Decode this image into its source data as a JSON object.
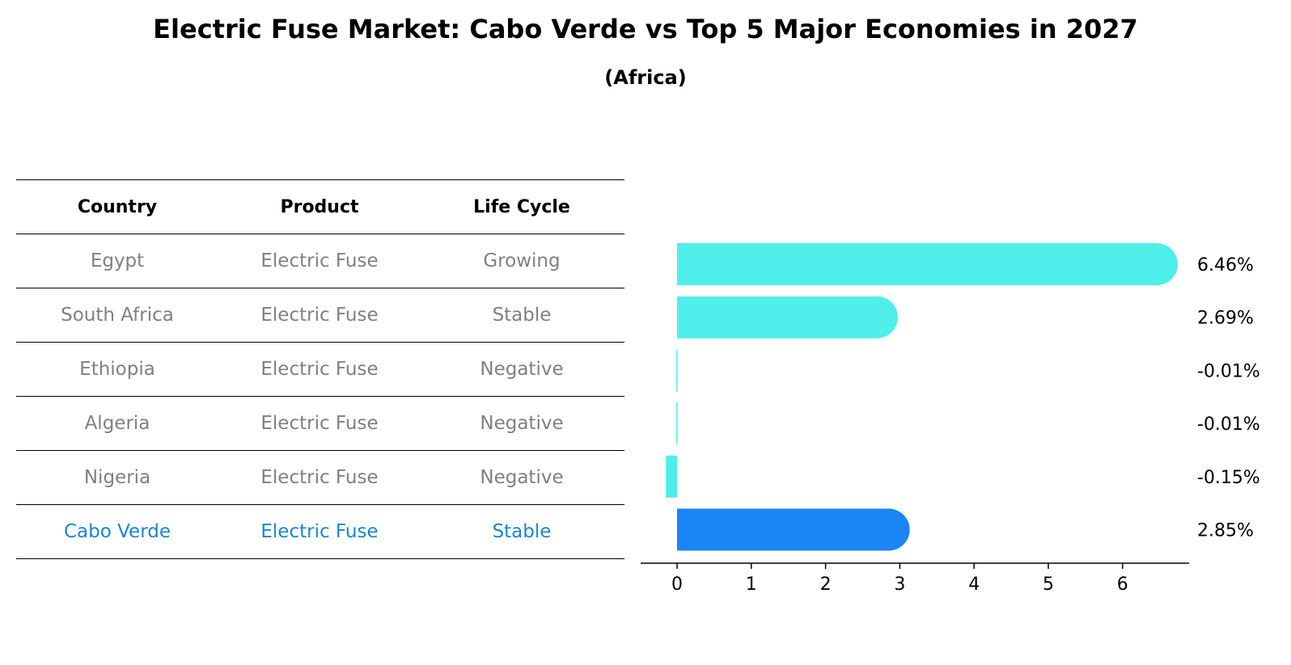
{
  "title": "Electric Fuse Market: Cabo Verde vs Top 5 Major Economies in 2027",
  "subtitle": "(Africa)",
  "table": {
    "headers": [
      "Country",
      "Product",
      "Life Cycle"
    ],
    "rows": [
      [
        "Egypt",
        "Electric Fuse",
        "Growing"
      ],
      [
        "South Africa",
        "Electric Fuse",
        "Stable"
      ],
      [
        "Ethiopia",
        "Electric Fuse",
        "Negative"
      ],
      [
        "Algeria",
        "Electric Fuse",
        "Negative"
      ],
      [
        "Nigeria",
        "Electric Fuse",
        "Negative"
      ],
      [
        "Cabo Verde",
        "Electric Fuse",
        "Stable"
      ]
    ],
    "highlight_row": 5,
    "highlight_color": "#1a85d4",
    "text_color": "#808080"
  },
  "chart_data": {
    "type": "bar",
    "orientation": "horizontal",
    "categories": [
      "Egypt",
      "South Africa",
      "Ethiopia",
      "Algeria",
      "Nigeria",
      "Cabo Verde"
    ],
    "values": [
      6.46,
      2.69,
      -0.01,
      -0.01,
      -0.15,
      2.85
    ],
    "labels": [
      "6.46%",
      "2.69%",
      "-0.01%",
      "-0.01%",
      "-0.15%",
      "2.85%"
    ],
    "xticks": [
      0,
      1,
      2,
      3,
      4,
      5,
      6
    ],
    "xlim": [
      -0.5,
      6.8
    ],
    "bar_color": "#4eeeea",
    "highlight_color": "#1a85f5",
    "highlight_index": 5,
    "grid": false
  }
}
